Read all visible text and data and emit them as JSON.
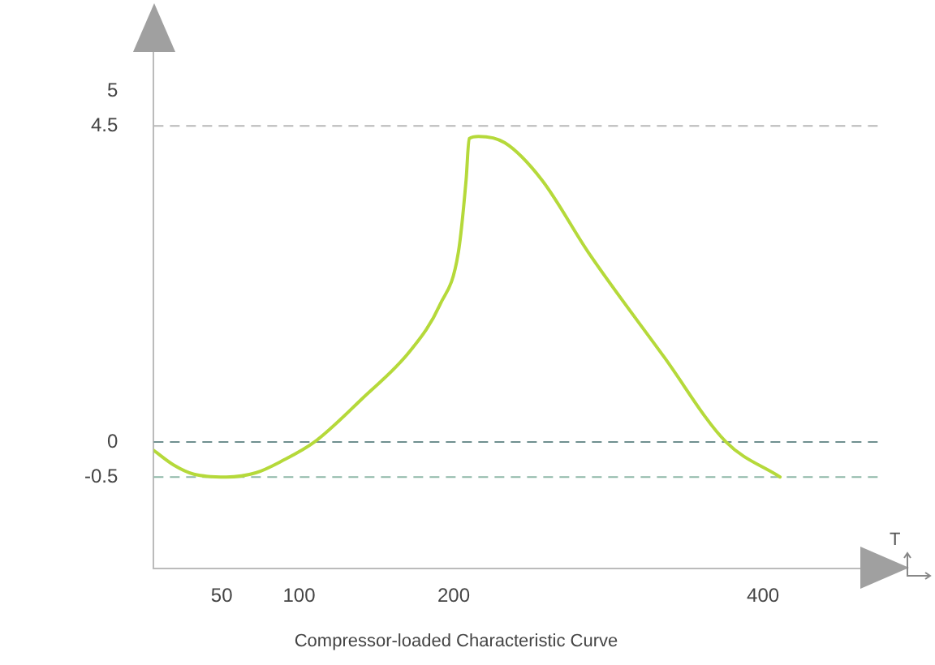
{
  "chart_data": {
    "type": "line",
    "title": "Compressor-loaded Characteristic Curve",
    "xlabel": "T",
    "x": [
      6,
      19,
      32,
      53,
      72,
      89,
      110,
      141,
      172,
      191,
      203,
      208,
      210,
      216,
      233,
      257,
      287,
      336,
      376,
      411
    ],
    "series": [
      {
        "color": "#b5d93a",
        "values": [
          -0.12,
          -0.33,
          -0.46,
          -0.5,
          -0.44,
          -0.27,
          0,
          0.62,
          1.3,
          1.95,
          2.7,
          3.73,
          4.32,
          4.35,
          4.26,
          3.73,
          2.7,
          1.21,
          0,
          -0.5
        ]
      }
    ],
    "xlim": [
      6,
      465
    ],
    "xticks": [
      50,
      100,
      200,
      400
    ],
    "ylim": [
      -1.8,
      5.6
    ],
    "yticks": [
      -0.5,
      0,
      4.5,
      5
    ],
    "ref_lines": [
      {
        "axis": "y",
        "value": 4.5,
        "color": "#b8b8b8",
        "line_style": "dashed"
      },
      {
        "axis": "y",
        "value": 0,
        "color": "#6f8f8f",
        "line_style": "dashed"
      },
      {
        "axis": "y",
        "value": -0.5,
        "color": "#8fb8a8",
        "line_style": "dashed"
      }
    ],
    "grid": false,
    "legend": false,
    "marker": "none",
    "line_style": "solid"
  }
}
